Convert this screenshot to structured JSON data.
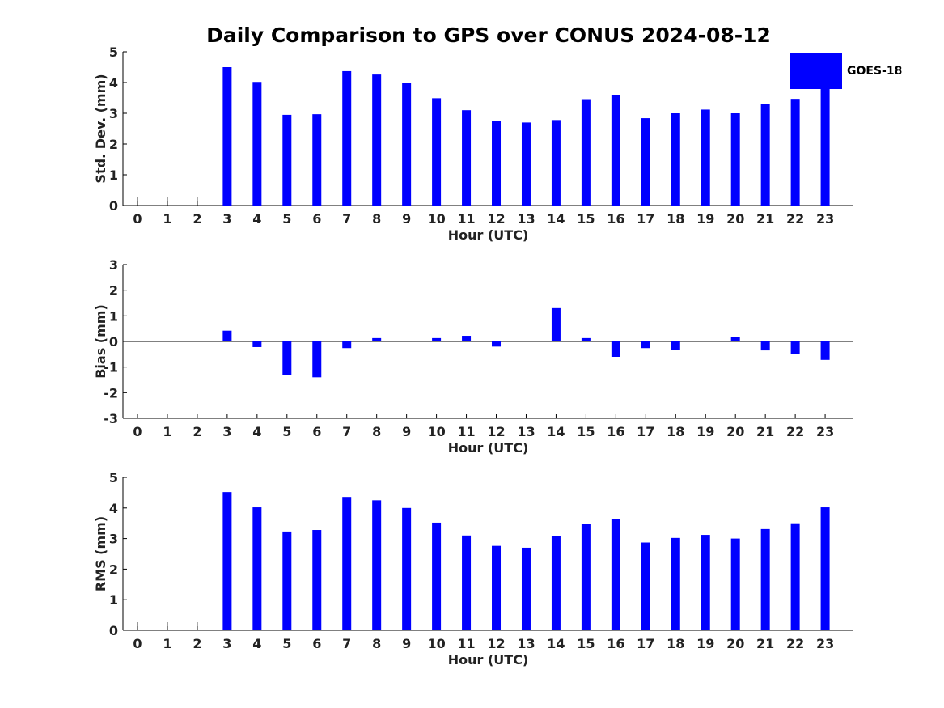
{
  "chart_data": {
    "title": "Daily Comparison to GPS over CONUS 2024-08-12",
    "legend": {
      "label": "GOES-18",
      "color": "#0000ff",
      "position": "top-right"
    },
    "panels": [
      {
        "type": "bar",
        "ylabel": "Std. Dev. (mm)",
        "xlabel": "Hour (UTC)",
        "ylim": [
          0,
          5
        ],
        "yticks": [
          0,
          1,
          2,
          3,
          4,
          5
        ],
        "categories": [
          0,
          1,
          2,
          3,
          4,
          5,
          6,
          7,
          8,
          9,
          10,
          11,
          12,
          13,
          14,
          15,
          16,
          17,
          18,
          19,
          20,
          21,
          22,
          23
        ],
        "values": [
          0,
          0,
          0,
          4.5,
          4.02,
          2.95,
          2.97,
          4.37,
          4.26,
          4.0,
          3.49,
          3.1,
          2.76,
          2.7,
          2.78,
          3.46,
          3.6,
          2.84,
          3.0,
          3.12,
          3.0,
          3.31,
          3.47,
          3.95
        ],
        "zero_stubs": [
          0,
          1,
          2
        ]
      },
      {
        "type": "bar",
        "ylabel": "Bias (mm)",
        "xlabel": "Hour (UTC)",
        "ylim": [
          -3,
          3
        ],
        "yticks": [
          -3,
          -2,
          -1,
          0,
          1,
          2,
          3
        ],
        "categories": [
          0,
          1,
          2,
          3,
          4,
          5,
          6,
          7,
          8,
          9,
          10,
          11,
          12,
          13,
          14,
          15,
          16,
          17,
          18,
          19,
          20,
          21,
          22,
          23
        ],
        "values": [
          0,
          0,
          0,
          0.42,
          -0.22,
          -1.32,
          -1.4,
          -0.26,
          0.13,
          0,
          0.13,
          0.22,
          -0.2,
          0,
          1.3,
          0.13,
          -0.6,
          -0.26,
          -0.33,
          0,
          0.16,
          -0.35,
          -0.48,
          -0.72
        ],
        "zero_stubs": []
      },
      {
        "type": "bar",
        "ylabel": "RMS (mm)",
        "xlabel": "Hour (UTC)",
        "ylim": [
          0,
          5
        ],
        "yticks": [
          0,
          1,
          2,
          3,
          4,
          5
        ],
        "categories": [
          0,
          1,
          2,
          3,
          4,
          5,
          6,
          7,
          8,
          9,
          10,
          11,
          12,
          13,
          14,
          15,
          16,
          17,
          18,
          19,
          20,
          21,
          22,
          23
        ],
        "values": [
          0,
          0,
          0,
          4.52,
          4.02,
          3.23,
          3.28,
          4.36,
          4.25,
          4.0,
          3.52,
          3.1,
          2.76,
          2.7,
          3.07,
          3.47,
          3.65,
          2.87,
          3.02,
          3.12,
          3.0,
          3.31,
          3.5,
          4.02
        ],
        "zero_stubs": [
          0,
          1,
          2
        ]
      }
    ]
  }
}
